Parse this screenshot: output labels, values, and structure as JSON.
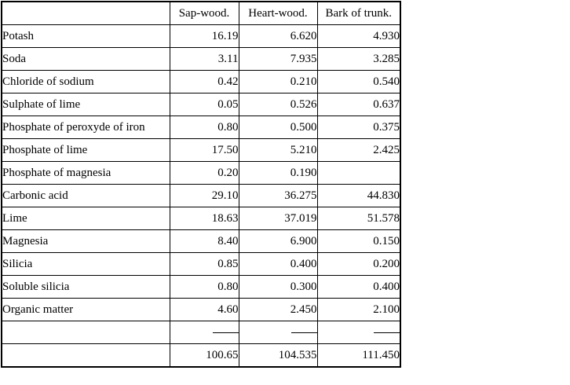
{
  "table": {
    "headers": [
      "",
      "Sap-wood.",
      "Heart-wood.",
      "Bark of trunk."
    ],
    "rows": [
      {
        "label": "Potash",
        "values": [
          "16.19",
          "6.620",
          "4.930"
        ]
      },
      {
        "label": "Soda",
        "values": [
          "3.11",
          "7.935",
          "3.285"
        ]
      },
      {
        "label": "Chloride of sodium",
        "values": [
          "0.42",
          "0.210",
          "0.540"
        ]
      },
      {
        "label": "Sulphate of lime",
        "values": [
          "0.05",
          "0.526",
          "0.637"
        ]
      },
      {
        "label": "Phosphate of peroxyde of iron",
        "values": [
          "0.80",
          "0.500",
          "0.375"
        ]
      },
      {
        "label": "Phosphate of lime",
        "values": [
          "17.50",
          "5.210",
          "2.425"
        ]
      },
      {
        "label": "Phosphate of magnesia",
        "values": [
          "0.20",
          "0.190",
          ""
        ]
      },
      {
        "label": "Carbonic acid",
        "values": [
          "29.10",
          "36.275",
          "44.830"
        ]
      },
      {
        "label": "Lime",
        "values": [
          "18.63",
          "37.019",
          "51.578"
        ]
      },
      {
        "label": "Magnesia",
        "values": [
          "8.40",
          "6.900",
          "0.150"
        ]
      },
      {
        "label": "Silicia",
        "values": [
          "0.85",
          "0.400",
          "0.200"
        ]
      },
      {
        "label": "Soluble silicia",
        "values": [
          "0.80",
          "0.300",
          "0.400"
        ]
      },
      {
        "label": "Organic matter",
        "values": [
          "4.60",
          "2.450",
          "2.100"
        ]
      }
    ],
    "totals": {
      "label": "",
      "values": [
        "100.65",
        "104.535",
        "111.450"
      ]
    }
  },
  "chart_data": {
    "type": "table",
    "title": "",
    "columns": [
      "Sap-wood.",
      "Heart-wood.",
      "Bark of trunk."
    ],
    "row_labels": [
      "Potash",
      "Soda",
      "Chloride of sodium",
      "Sulphate of lime",
      "Phosphate of peroxyde of iron",
      "Phosphate of lime",
      "Phosphate of magnesia",
      "Carbonic acid",
      "Lime",
      "Magnesia",
      "Silicia",
      "Soluble silicia",
      "Organic matter"
    ],
    "series": [
      {
        "name": "Sap-wood.",
        "values": [
          16.19,
          3.11,
          0.42,
          0.05,
          0.8,
          17.5,
          0.2,
          29.1,
          18.63,
          8.4,
          0.85,
          0.8,
          4.6
        ]
      },
      {
        "name": "Heart-wood.",
        "values": [
          6.62,
          7.935,
          0.21,
          0.526,
          0.5,
          5.21,
          0.19,
          36.275,
          37.019,
          6.9,
          0.4,
          0.3,
          2.45
        ]
      },
      {
        "name": "Bark of trunk.",
        "values": [
          4.93,
          3.285,
          0.54,
          0.637,
          0.375,
          2.425,
          null,
          44.83,
          51.578,
          0.15,
          0.2,
          0.4,
          2.1
        ]
      }
    ],
    "totals": [
      100.65,
      104.535,
      111.45
    ],
    "layout_hints": {
      "grid": "all-borders",
      "border_color": "#000000",
      "background": "#ffffff",
      "numeric_alignment": "right",
      "label_alignment": "left",
      "header_alignment": "center"
    }
  },
  "colors": {
    "border": "#000000",
    "background": "#ffffff",
    "text": "#000000"
  }
}
